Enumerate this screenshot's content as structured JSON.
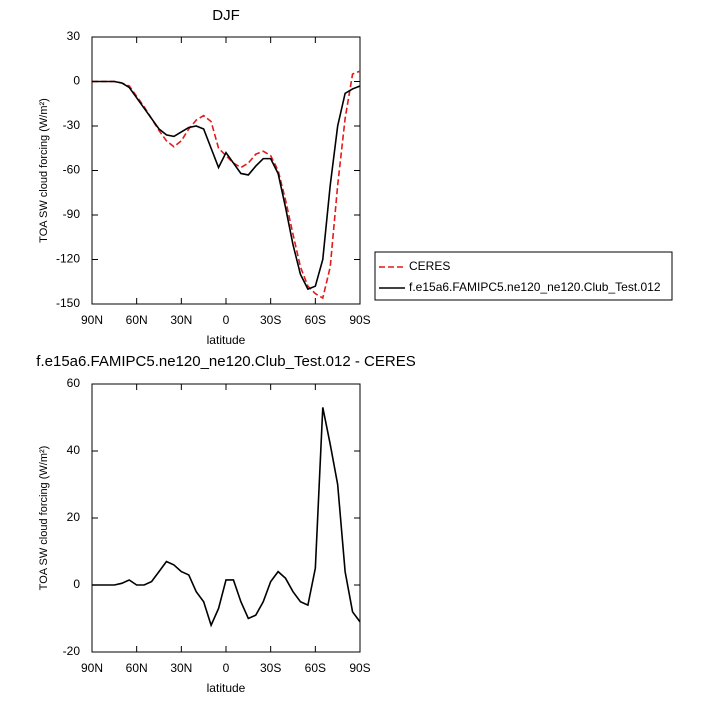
{
  "chart_data": [
    {
      "type": "line",
      "title": "DJF",
      "xlabel": "latitude",
      "ylabel": "TOA SW cloud forcing (W/m²)",
      "x": [
        90,
        85,
        80,
        75,
        70,
        65,
        60,
        55,
        50,
        45,
        40,
        35,
        30,
        25,
        20,
        15,
        10,
        5,
        0,
        -5,
        -10,
        -15,
        -20,
        -25,
        -30,
        -35,
        -40,
        -45,
        -50,
        -55,
        -60,
        -65,
        -70,
        -75,
        -80,
        -85,
        -90
      ],
      "series": [
        {
          "name": "CERES",
          "color": "#e31a1c",
          "dashed": true,
          "values": [
            0,
            0,
            0,
            0,
            -1,
            -3,
            -10,
            -17,
            -25,
            -33,
            -40,
            -44,
            -40,
            -32,
            -26,
            -23,
            -27,
            -45,
            -50,
            -55,
            -58,
            -55,
            -49,
            -47,
            -50,
            -60,
            -80,
            -103,
            -125,
            -138,
            -143,
            -146,
            -125,
            -70,
            -25,
            5,
            7
          ]
        },
        {
          "name": "f.e15a6.FAMIPC5.ne120_ne120.Club_Test.012",
          "color": "#000000",
          "dashed": false,
          "values": [
            0,
            0,
            0,
            0,
            -1,
            -4,
            -11,
            -18,
            -25,
            -32,
            -36,
            -37,
            -34,
            -31,
            -30,
            -32,
            -45,
            -58,
            -48,
            -55,
            -62,
            -63,
            -57,
            -52,
            -52,
            -62,
            -85,
            -110,
            -130,
            -140,
            -138,
            -120,
            -70,
            -30,
            -8,
            -5,
            -3
          ]
        }
      ],
      "xlim": [
        90,
        -90
      ],
      "xticks": [
        {
          "value": 90,
          "label": "90N"
        },
        {
          "value": 60,
          "label": "60N"
        },
        {
          "value": 30,
          "label": "30N"
        },
        0,
        {
          "value": -30,
          "label": "30S"
        },
        {
          "value": -60,
          "label": "60S"
        },
        {
          "value": -90,
          "label": "90S"
        }
      ],
      "ylim": [
        -150,
        30
      ],
      "yticks": [
        30,
        0,
        -30,
        -60,
        -90,
        -120,
        -150
      ],
      "legend": "right"
    },
    {
      "type": "line",
      "title": "f.e15a6.FAMIPC5.ne120_ne120.Club_Test.012 - CERES",
      "xlabel": "latitude",
      "ylabel": "TOA SW cloud forcing (W/m²)",
      "x": [
        90,
        85,
        80,
        75,
        70,
        65,
        60,
        55,
        50,
        45,
        40,
        35,
        30,
        25,
        20,
        15,
        10,
        5,
        0,
        -5,
        -10,
        -15,
        -20,
        -25,
        -30,
        -35,
        -40,
        -45,
        -50,
        -55,
        -60,
        -65,
        -70,
        -75,
        -80,
        -85,
        -90
      ],
      "series": [
        {
          "color": "#000000",
          "dashed": false,
          "values": [
            0,
            0,
            0,
            0,
            0.5,
            1.5,
            0,
            0,
            1,
            4,
            7,
            6,
            4,
            3,
            -2,
            -5,
            -12,
            -7,
            1.5,
            1.5,
            -5,
            -10,
            -9,
            -5,
            1,
            4,
            2,
            -2,
            -5,
            -6,
            5,
            53,
            42,
            30,
            4,
            -8,
            -11
          ]
        }
      ],
      "xlim": [
        90,
        -90
      ],
      "xticks": [
        {
          "value": 90,
          "label": "90N"
        },
        {
          "value": 60,
          "label": "60N"
        },
        {
          "value": 30,
          "label": "30N"
        },
        0,
        {
          "value": -30,
          "label": "30S"
        },
        {
          "value": -60,
          "label": "60S"
        },
        {
          "value": -90,
          "label": "90S"
        }
      ],
      "ylim": [
        -20,
        60
      ],
      "yticks": [
        60,
        40,
        20,
        0,
        -20
      ]
    }
  ]
}
